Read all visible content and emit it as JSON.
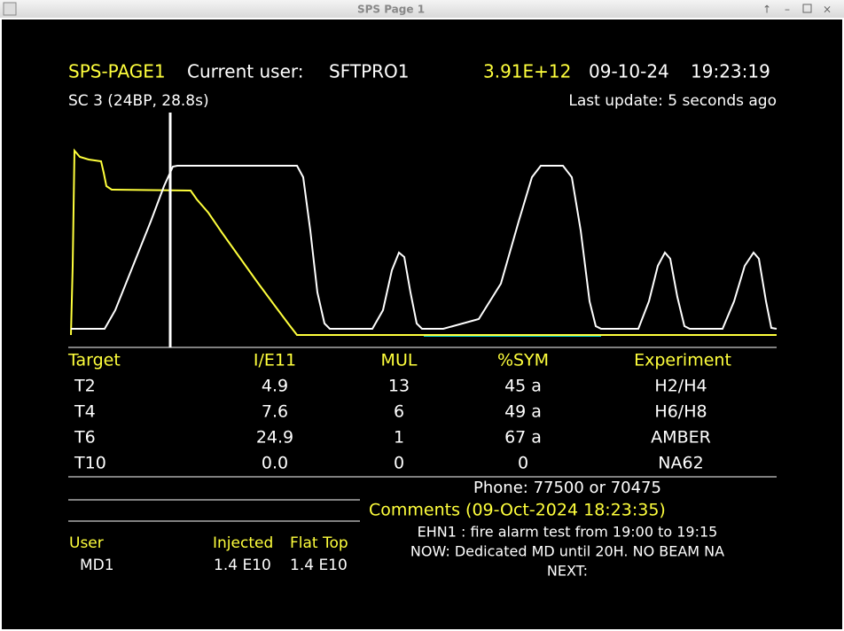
{
  "window": {
    "title": "SPS Page 1"
  },
  "header": {
    "page": "SPS-PAGE1",
    "user_label": "Current user:",
    "user": "SFTPRO1",
    "intensity": "3.91E+12",
    "date": "09-10-24",
    "time": "19:23:19",
    "cycle": "SC 3 (24BP, 28.8s)",
    "last_update": "Last update: 5 seconds ago"
  },
  "table": {
    "columns": [
      "Target",
      "I/E11",
      "MUL",
      "%SYM",
      "Experiment"
    ],
    "rows": [
      [
        "T2",
        "4.9",
        "13",
        "45 a",
        "H2/H4"
      ],
      [
        "T4",
        "7.6",
        "6",
        "49 a",
        "H6/H8"
      ],
      [
        "T6",
        "24.9",
        "1",
        "67 a",
        "AMBER"
      ],
      [
        "T10",
        "0.0",
        "0",
        "0",
        "NA62"
      ]
    ]
  },
  "phone": "Phone: 77500 or 70475",
  "comments": {
    "title": "Comments (09-Oct-2024 18:23:35)",
    "lines": [
      "EHN1 : fire alarm test from 19:00 to 19:15",
      "NOW: Dedicated MD until 20H. NO BEAM NA",
      "NEXT:"
    ]
  },
  "users": {
    "columns": [
      "User",
      "Injected",
      "Flat Top"
    ],
    "rows": [
      [
        "MD1",
        "1.4 E10",
        "1.4 E10"
      ]
    ]
  }
}
